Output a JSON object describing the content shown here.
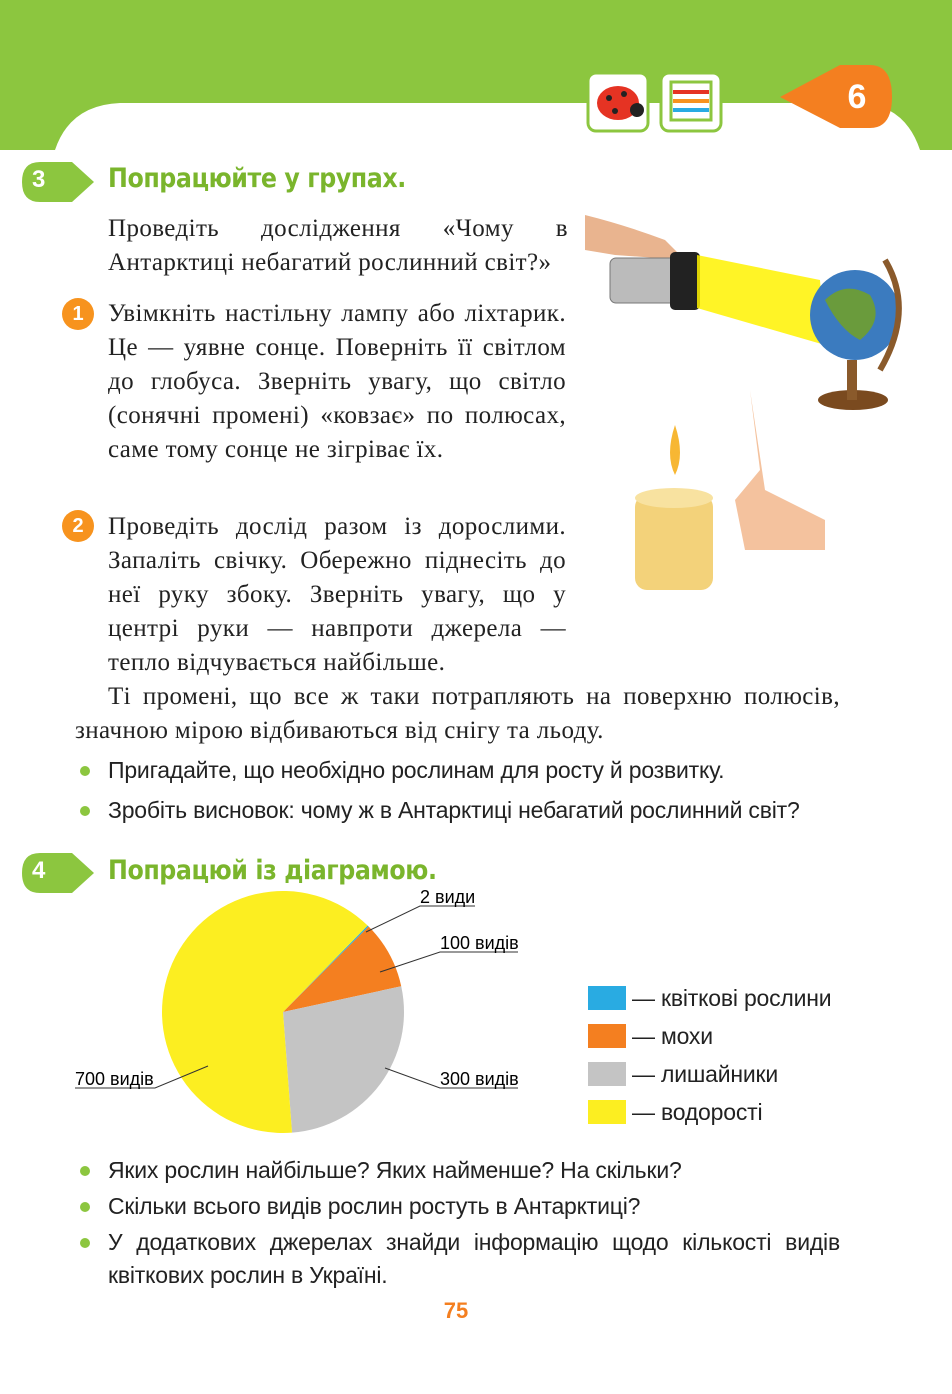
{
  "header": {
    "chapter": "6"
  },
  "section3": {
    "number": "3",
    "title": "Попрацюйте у групах.",
    "intro": "Проведіть дослідження «Чому в Антарктиці небагатий рослинний світ?»",
    "steps": [
      {
        "number": "1",
        "text": "Увімкніть настільну лампу або ліхтарик. Це — уявне сонце. Поверніть її світлом до глобуса. Зверніть увагу, що світло (сонячні промені) «ковзає» по полюсах, саме тому сонце не зігріває їх."
      },
      {
        "number": "2",
        "text": "Проведіть дослід разом із дорослими. Запаліть свічку. Обережно піднесіть до неї руку збоку. Зверніть увагу, що у центрі руки — навпроти джерела — тепло відчувається найбільше."
      }
    ],
    "paragraph": "Ті промені, що все ж таки потрапляють на поверхню полюсів, значною мірою відбиваються від снігу та льоду.",
    "bullets": [
      "Пригадайте, що необхідно рослинам для росту й розвитку.",
      "Зробіть висновок: чому ж в Антарктиці небагатий рослинний світ?"
    ]
  },
  "section4": {
    "number": "4",
    "title": "Попрацюй із діаграмою.",
    "bullets": [
      "Яких рослин найбільше? Яких найменше? На скільки?",
      "Скільки всього видів рослин ростуть в Антарктиці?",
      "У додаткових джерелах знайди інформацію щодо кількості видів квіткових рослин в Україні."
    ]
  },
  "chart_data": {
    "type": "pie",
    "categories": [
      "— квіткові рослини",
      "— мохи",
      "— лишайники",
      "— водорості"
    ],
    "values": [
      2,
      100,
      300,
      700
    ],
    "value_labels": [
      "2 види",
      "100 видів",
      "300 видів",
      "700 видів"
    ],
    "colors": [
      "#29abe2",
      "#f47f20",
      "#c4c4c4",
      "#fcee21"
    ]
  },
  "page_number": "75"
}
